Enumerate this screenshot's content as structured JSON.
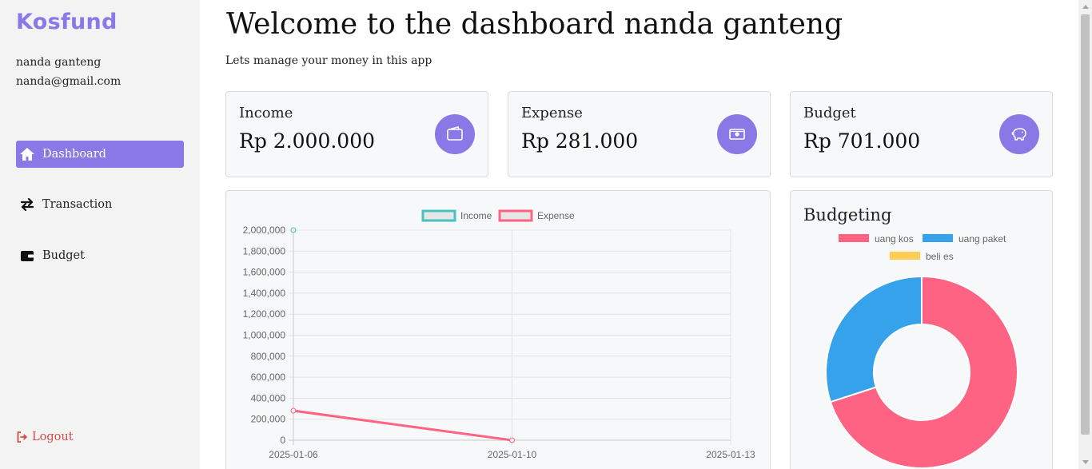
{
  "sidebar": {
    "logo": "Kosfund",
    "user": {
      "name": "nanda ganteng",
      "email": "nanda@gmail.com"
    },
    "nav": [
      {
        "label": "Dashboard",
        "icon": "home-icon",
        "active": true
      },
      {
        "label": "Transaction",
        "icon": "arrows-exchange-icon",
        "active": false
      },
      {
        "label": "Budget",
        "icon": "wallet-icon",
        "active": false
      }
    ],
    "logout_label": "Logout"
  },
  "header": {
    "title": "Welcome to the dashboard nanda ganteng",
    "subtitle": "Lets manage your money in this app"
  },
  "stats": [
    {
      "label": "Income",
      "value": "Rp 2.000.000",
      "icon": "wallet-icon"
    },
    {
      "label": "Expense",
      "value": "Rp 281.000",
      "icon": "cash-icon"
    },
    {
      "label": "Budget",
      "value": "Rp 701.000",
      "icon": "piggy-bank-icon"
    }
  ],
  "budgeting": {
    "title": "Budgeting"
  },
  "colors": {
    "accent": "#8a78e6",
    "income": "#4bc0c0",
    "expense": "#ff6384",
    "uang_kos": "#ff6384",
    "uang_paket": "#36a2eb",
    "beli_es": "#ffcd56",
    "logout": "#d64c44"
  },
  "chart_data": [
    {
      "type": "line",
      "x": [
        "2025-01-06",
        "2025-01-10",
        "2025-01-13"
      ],
      "series": [
        {
          "name": "Income",
          "values": [
            2000000,
            null,
            null
          ]
        },
        {
          "name": "Expense",
          "values": [
            281000,
            0,
            null
          ]
        }
      ],
      "ylim": [
        0,
        2000000
      ],
      "yticks": [
        0,
        200000,
        400000,
        600000,
        800000,
        1000000,
        1200000,
        1400000,
        1600000,
        1800000,
        2000000
      ],
      "ytick_labels": [
        "0",
        "200,000",
        "400,000",
        "600,000",
        "800,000",
        "1,000,000",
        "1,200,000",
        "1,400,000",
        "1,600,000",
        "1,800,000",
        "2,000,000"
      ],
      "grid": true,
      "legend": "top"
    },
    {
      "type": "pie",
      "variant": "doughnut",
      "labels": [
        "uang kos",
        "uang paket",
        "beli es"
      ],
      "values": [
        70,
        30,
        0
      ],
      "legend": "top"
    }
  ]
}
